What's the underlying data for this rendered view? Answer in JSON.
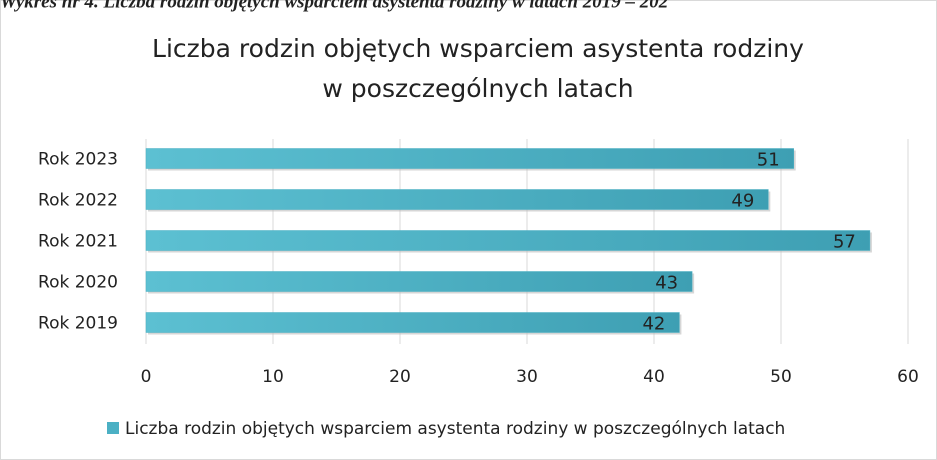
{
  "caption": "Wykres nr 4. Liczba rodzin objętych wsparciem asystenta rodziny w latach 2019 – 202",
  "chart_data": {
    "type": "hbar",
    "title": [
      "Liczba rodzin objętych wsparciem asystenta rodziny",
      "w poszczególnych latach"
    ],
    "categories": [
      "Rok 2023",
      "Rok 2022",
      "Rok 2021",
      "Rok 2020",
      "Rok 2019"
    ],
    "series": [
      {
        "name": "Liczba rodzin objętych wsparciem asystenta rodziny w poszczególnych latach",
        "color": "#4bb0c4",
        "values": [
          51,
          49,
          57,
          43,
          42
        ]
      }
    ],
    "xlim": [
      0,
      60
    ],
    "xticks": [
      0,
      10,
      20,
      30,
      40,
      50,
      60
    ],
    "grid": true,
    "legend": "bottom"
  }
}
